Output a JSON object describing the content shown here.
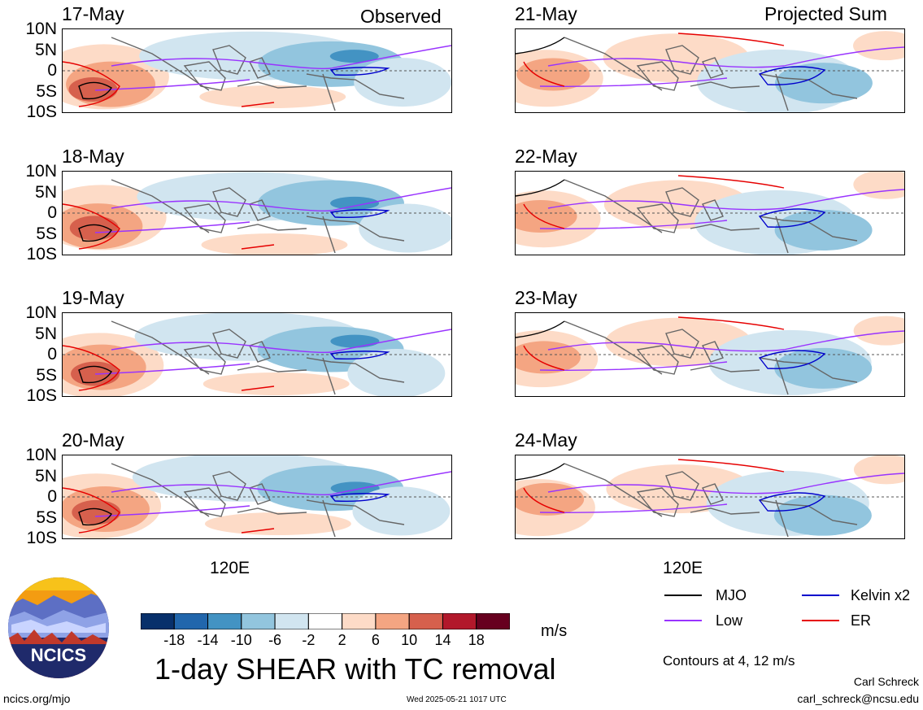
{
  "panels": {
    "left_header": "Observed",
    "right_header": "Projected Sum",
    "left_dates": [
      "17-May",
      "18-May",
      "19-May",
      "20-May"
    ],
    "right_dates": [
      "21-May",
      "22-May",
      "23-May",
      "24-May"
    ],
    "lat_labels": [
      "10N",
      "5N",
      "0",
      "5S",
      "10S"
    ],
    "lon_label": "120E"
  },
  "colorbar": {
    "labels": [
      "-18",
      "-14",
      "-10",
      "-6",
      "-2",
      "2",
      "6",
      "10",
      "14",
      "18"
    ],
    "colors": [
      "#08306b",
      "#2166ac",
      "#4393c3",
      "#92c5de",
      "#d1e5f0",
      "#ffffff",
      "#fddbc7",
      "#f4a582",
      "#d6604d",
      "#b2182b",
      "#67001f"
    ],
    "units": "m/s"
  },
  "title": "1-day SHEAR with TC removal",
  "legend": {
    "items": [
      {
        "label": "MJO",
        "color": "#000000"
      },
      {
        "label": "Kelvin x2",
        "color": "#0000cc"
      },
      {
        "label": "Low",
        "color": "#9933ff"
      },
      {
        "label": "ER",
        "color": "#e60000"
      }
    ],
    "contours_note": "Contours at 4, 12 m/s"
  },
  "logo": {
    "text": "NCICS"
  },
  "footer": {
    "url": "ncics.org/mjo",
    "timestamp": "Wed 2025-05-21 1017 UTC",
    "author": "Carl Schreck",
    "email": "carl_schreck@ncsu.edu"
  }
}
